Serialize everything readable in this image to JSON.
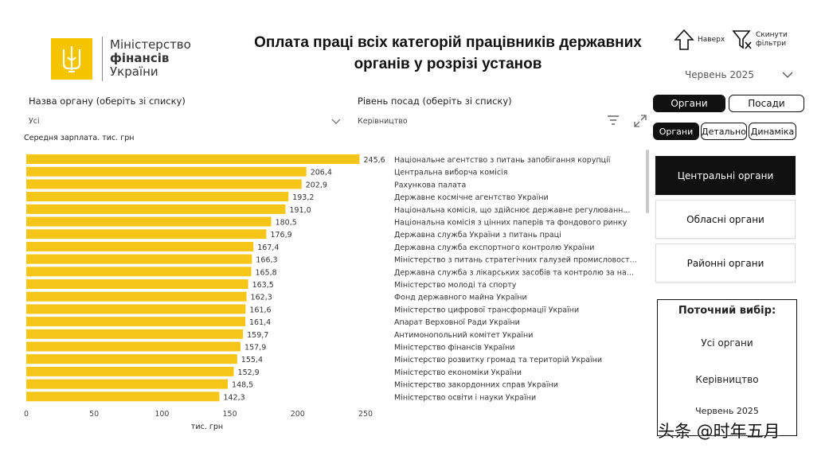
{
  "logo": {
    "line1": "Міністерство",
    "line2": "фінансів",
    "line3": "України"
  },
  "title": "Оплата праці всіх категорій працівників державних органів у розрізі установ",
  "header_buttons": {
    "home_label_line1": "Наверх",
    "reset_label_line1": "Скинути",
    "reset_label_line2": "фільтри"
  },
  "month_select": {
    "value": "Червень 2025"
  },
  "slicers": {
    "organ": {
      "label": "Назва органу (оберіть зі списку)",
      "value": "Усі"
    },
    "level": {
      "label": "Рівень посад (оберіть зі списку)",
      "value": "Керівництво"
    }
  },
  "toggle_main": [
    {
      "label": "Органи",
      "active": true
    },
    {
      "label": "Посади",
      "active": false
    }
  ],
  "toggle_view": [
    {
      "label": "Органи",
      "active": true
    },
    {
      "label": "Детально",
      "active": false
    },
    {
      "label": "Динаміка",
      "active": false
    }
  ],
  "side_buttons": [
    {
      "label": "Центральні органи",
      "active": true
    },
    {
      "label": "Обласні органи",
      "active": false
    },
    {
      "label": "Районні органи",
      "active": false
    }
  ],
  "current_selection": {
    "heading": "Поточний вибір:",
    "organs": "Усі органи",
    "level": "Керівництво",
    "month": "Червень 2025"
  },
  "watermark": "头条 @时年五月",
  "colors": {
    "bar": "#f5c518",
    "accent": "#111111"
  },
  "chart_data": {
    "type": "bar",
    "orientation": "horizontal",
    "title": "Середня зарплата. тис. грн",
    "xlabel": "тис. грн",
    "ylabel": "",
    "xlim": [
      0,
      250
    ],
    "xticks": [
      0,
      50,
      100,
      150,
      200,
      250
    ],
    "categories": [
      "Національне агентство з питань запобігання корупції",
      "Центральна виборча комісія",
      "Рахункова палата",
      "Державне космічне агентство України",
      "Національна комісія, що здійснює державне регулюванн...",
      "Національна комісія з цінних паперів та фондового ринку",
      "Державна служба України з питань праці",
      "Державна служба експортного контролю України",
      "Міністерство з питань стратегічних галузей промисловост...",
      "Державна служба з лікарських засобів та контролю за на...",
      "Міністерство молоді та спорту",
      "Фонд державного майна України",
      "Міністерство цифрової трансформації України",
      "Апарат Верховної Ради України",
      "Антимонопольний комітет України",
      "Міністерство фінансів України",
      "Міністерство розвитку громад та територій України",
      "Міністерство економіки України",
      "Міністерство закордонних справ України",
      "Міністерство освіти і науки України"
    ],
    "values": [
      245.6,
      206.4,
      202.9,
      193.2,
      191.0,
      180.5,
      176.9,
      167.4,
      166.3,
      165.8,
      163.5,
      162.3,
      161.6,
      161.4,
      159.7,
      157.9,
      155.4,
      152.9,
      148.5,
      142.3
    ],
    "value_labels": [
      "245,6",
      "206,4",
      "202,9",
      "193,2",
      "191,0",
      "180,5",
      "176,9",
      "167,4",
      "166,3",
      "165,8",
      "163,5",
      "162,3",
      "161,6",
      "161,4",
      "159,7",
      "157,9",
      "155,4",
      "152,9",
      "148,5",
      "142,3"
    ]
  }
}
